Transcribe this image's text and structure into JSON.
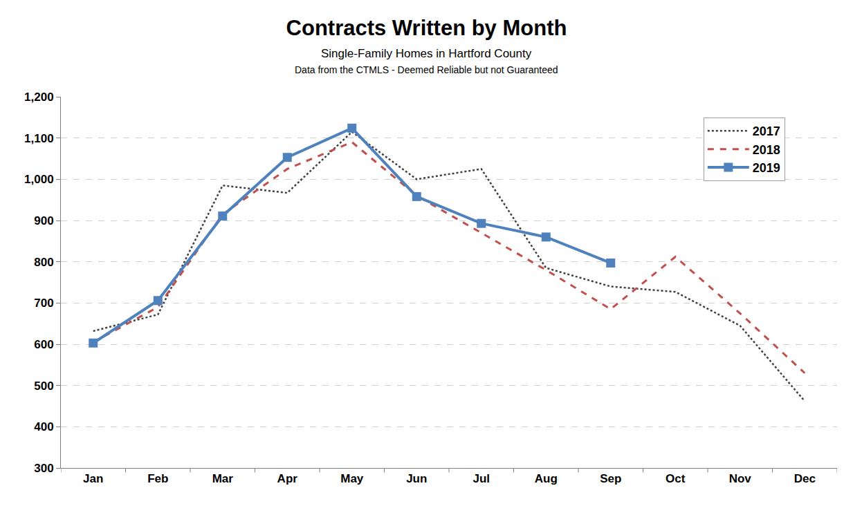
{
  "chart_data": {
    "type": "line",
    "title": "Contracts Written by Month",
    "subtitle": "Single-Family Homes in Hartford County",
    "annotations": [
      "Data from the CTMLS - Deemed Reliable but not Guaranteed"
    ],
    "categories": [
      "Jan",
      "Feb",
      "Mar",
      "Apr",
      "May",
      "Jun",
      "Jul",
      "Aug",
      "Sep",
      "Oct",
      "Nov",
      "Dec"
    ],
    "series": [
      {
        "name": "2017",
        "color": "#404040",
        "line_style": "dotted",
        "values": [
          632,
          672,
          985,
          967,
          1115,
          1000,
          1025,
          785,
          740,
          727,
          645,
          462
        ]
      },
      {
        "name": "2018",
        "color": "#c0504d",
        "line_style": "dashed",
        "values": [
          605,
          690,
          915,
          1025,
          1090,
          960,
          870,
          780,
          685,
          812,
          675,
          530
        ]
      },
      {
        "name": "2019",
        "color": "#4f81bd",
        "line_style": "solid",
        "marker": "square",
        "values": [
          603,
          706,
          911,
          1053,
          1124,
          958,
          893,
          860,
          797,
          null,
          null,
          null
        ]
      }
    ],
    "ylim": [
      300,
      1200
    ],
    "yticks": [
      300,
      400,
      500,
      600,
      700,
      800,
      900,
      {
        "value": 1000,
        "label": "1,000"
      },
      {
        "value": 1100,
        "label": "1,100"
      },
      {
        "value": 1200,
        "label": "1,200"
      }
    ],
    "grid": true,
    "legend": "top right"
  }
}
